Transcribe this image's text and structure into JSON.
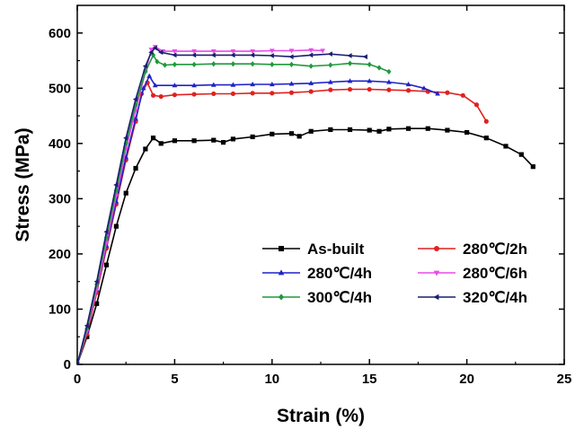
{
  "chart_data": {
    "type": "line",
    "title": "",
    "xlabel": "Strain (%)",
    "ylabel": "Stress (MPa)",
    "xlim": [
      0,
      25
    ],
    "ylim": [
      0,
      650
    ],
    "xticks": [
      0,
      5,
      10,
      15,
      20,
      25
    ],
    "yticks": [
      0,
      100,
      200,
      300,
      400,
      500,
      600
    ],
    "grid": false,
    "legend": "bottom-right",
    "series": [
      {
        "name": "As-built",
        "color": "#000000",
        "marker": "square",
        "points": [
          [
            0,
            0
          ],
          [
            0.5,
            50
          ],
          [
            1,
            110
          ],
          [
            1.5,
            180
          ],
          [
            2,
            250
          ],
          [
            2.5,
            310
          ],
          [
            3,
            355
          ],
          [
            3.5,
            390
          ],
          [
            3.9,
            410
          ],
          [
            4.3,
            400
          ],
          [
            5,
            405
          ],
          [
            6,
            405
          ],
          [
            7,
            406
          ],
          [
            7.5,
            402
          ],
          [
            8,
            408
          ],
          [
            9,
            412
          ],
          [
            10,
            417
          ],
          [
            11,
            418
          ],
          [
            11.4,
            413
          ],
          [
            12,
            422
          ],
          [
            13,
            425
          ],
          [
            14,
            425
          ],
          [
            15,
            424
          ],
          [
            15.5,
            422
          ],
          [
            16,
            426
          ],
          [
            17,
            427
          ],
          [
            18,
            427
          ],
          [
            19,
            424
          ],
          [
            20,
            420
          ],
          [
            21,
            410
          ],
          [
            22,
            395
          ],
          [
            22.8,
            380
          ],
          [
            23.4,
            358
          ]
        ]
      },
      {
        "name": "280℃/2h",
        "color": "#e0211f",
        "marker": "circle",
        "points": [
          [
            0,
            0
          ],
          [
            0.5,
            55
          ],
          [
            1,
            130
          ],
          [
            1.5,
            210
          ],
          [
            2,
            290
          ],
          [
            2.5,
            370
          ],
          [
            3,
            440
          ],
          [
            3.3,
            490
          ],
          [
            3.6,
            510
          ],
          [
            3.9,
            487
          ],
          [
            4.3,
            485
          ],
          [
            5,
            488
          ],
          [
            6,
            489
          ],
          [
            7,
            490
          ],
          [
            8,
            490
          ],
          [
            9,
            491
          ],
          [
            10,
            491
          ],
          [
            11,
            492
          ],
          [
            12,
            494
          ],
          [
            13,
            497
          ],
          [
            14,
            498
          ],
          [
            15,
            498
          ],
          [
            16,
            497
          ],
          [
            17,
            496
          ],
          [
            18,
            494
          ],
          [
            19,
            492
          ],
          [
            19.8,
            487
          ],
          [
            20.5,
            470
          ],
          [
            21,
            440
          ]
        ]
      },
      {
        "name": "280℃/4h",
        "color": "#1f22c8",
        "marker": "triangle",
        "points": [
          [
            0,
            0
          ],
          [
            0.5,
            60
          ],
          [
            1,
            135
          ],
          [
            1.5,
            215
          ],
          [
            2,
            295
          ],
          [
            2.5,
            375
          ],
          [
            3,
            445
          ],
          [
            3.4,
            500
          ],
          [
            3.7,
            522
          ],
          [
            4,
            505
          ],
          [
            5,
            505
          ],
          [
            6,
            505
          ],
          [
            7,
            506
          ],
          [
            8,
            506
          ],
          [
            9,
            507
          ],
          [
            10,
            507
          ],
          [
            11,
            508
          ],
          [
            12,
            509
          ],
          [
            13,
            511
          ],
          [
            14,
            513
          ],
          [
            15,
            513
          ],
          [
            16,
            511
          ],
          [
            17,
            507
          ],
          [
            17.8,
            500
          ],
          [
            18.5,
            490
          ]
        ]
      },
      {
        "name": "280℃/6h",
        "color": "#e84ce8",
        "marker": "triangle-down",
        "points": [
          [
            0,
            0
          ],
          [
            0.5,
            60
          ],
          [
            1,
            135
          ],
          [
            1.5,
            220
          ],
          [
            2,
            305
          ],
          [
            2.5,
            390
          ],
          [
            3,
            460
          ],
          [
            3.5,
            530
          ],
          [
            3.8,
            570
          ],
          [
            4,
            575
          ],
          [
            4.4,
            567
          ],
          [
            5,
            567
          ],
          [
            6,
            567
          ],
          [
            7,
            567
          ],
          [
            8,
            567
          ],
          [
            9,
            567
          ],
          [
            10,
            568
          ],
          [
            11,
            568
          ],
          [
            12,
            569
          ],
          [
            12.6,
            568
          ]
        ]
      },
      {
        "name": "300℃/4h",
        "color": "#1f9a3c",
        "marker": "diamond",
        "points": [
          [
            0,
            0
          ],
          [
            0.5,
            65
          ],
          [
            1,
            145
          ],
          [
            1.5,
            230
          ],
          [
            2,
            315
          ],
          [
            2.5,
            400
          ],
          [
            3,
            470
          ],
          [
            3.5,
            530
          ],
          [
            3.9,
            560
          ],
          [
            4.1,
            548
          ],
          [
            4.5,
            542
          ],
          [
            5,
            543
          ],
          [
            6,
            543
          ],
          [
            7,
            544
          ],
          [
            8,
            544
          ],
          [
            9,
            544
          ],
          [
            10,
            543
          ],
          [
            11,
            543
          ],
          [
            12,
            540
          ],
          [
            13,
            542
          ],
          [
            14,
            545
          ],
          [
            15,
            543
          ],
          [
            15.5,
            537
          ],
          [
            16,
            530
          ]
        ]
      },
      {
        "name": "320℃/4h",
        "color": "#1a1f70",
        "marker": "triangle-left",
        "points": [
          [
            0,
            0
          ],
          [
            0.5,
            70
          ],
          [
            1,
            150
          ],
          [
            1.5,
            240
          ],
          [
            2,
            325
          ],
          [
            2.5,
            410
          ],
          [
            3,
            480
          ],
          [
            3.5,
            540
          ],
          [
            3.8,
            565
          ],
          [
            4,
            573
          ],
          [
            4.3,
            565
          ],
          [
            5,
            560
          ],
          [
            6,
            560
          ],
          [
            7,
            560
          ],
          [
            8,
            560
          ],
          [
            9,
            560
          ],
          [
            10,
            559
          ],
          [
            11,
            557
          ],
          [
            12,
            560
          ],
          [
            13,
            562
          ],
          [
            14,
            559
          ],
          [
            14.8,
            557
          ]
        ]
      }
    ]
  }
}
